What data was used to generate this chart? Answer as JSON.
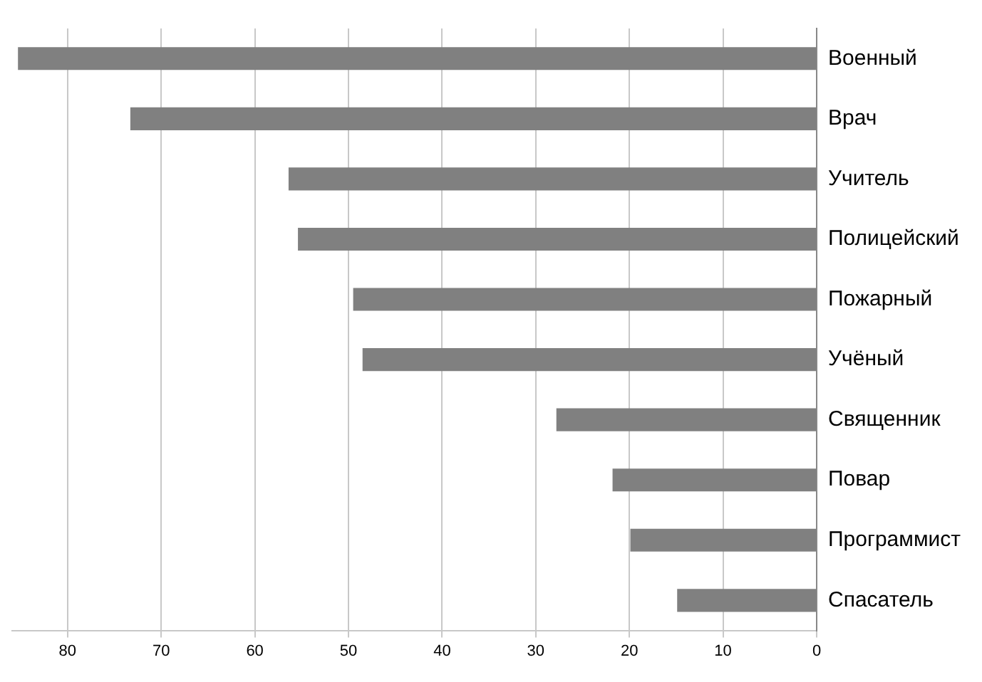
{
  "chart_data": {
    "type": "bar",
    "orientation": "horizontal",
    "categories": [
      "Военный",
      "Врач",
      "Учитель",
      "Полицейский",
      "Пожарный",
      "Учёный",
      "Священник",
      "Повар",
      "Программист",
      "Спасатель"
    ],
    "values": [
      85.3,
      73.3,
      56.4,
      55.4,
      49.5,
      48.5,
      27.8,
      21.8,
      19.9,
      14.9
    ],
    "color": "#808080",
    "xlim": [
      86,
      0
    ],
    "xticks": [
      80,
      70,
      60,
      50,
      40,
      30,
      20,
      10,
      0
    ],
    "grid": "x",
    "legend": false
  }
}
